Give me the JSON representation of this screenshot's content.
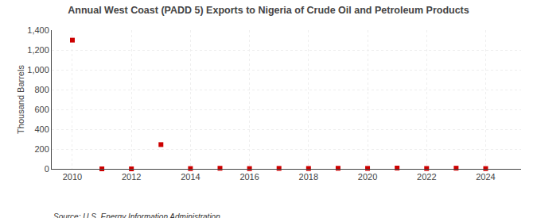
{
  "chart_data": {
    "type": "scatter",
    "title": "Annual West Coast (PADD 5) Exports to Nigeria of Crude Oil and Petroleum Products",
    "ylabel": "Thousand Barrels",
    "annotations": [
      "Source: U.S. Energy Information Administration"
    ],
    "x": [
      2010,
      2011,
      2012,
      2013,
      2014,
      2015,
      2016,
      2017,
      2018,
      2019,
      2020,
      2021,
      2022,
      2023,
      2024
    ],
    "values": [
      1299,
      0,
      0,
      245,
      3,
      6,
      3,
      5,
      4,
      6,
      5,
      8,
      4,
      7,
      3
    ],
    "color": "#cc0000",
    "marker": "square",
    "xlim": [
      2009.3,
      2025.2
    ],
    "xticks": [
      2010,
      2012,
      2014,
      2016,
      2018,
      2020,
      2022,
      2024
    ],
    "ylim": [
      0,
      1400
    ],
    "yticks": [
      0,
      200,
      400,
      600,
      800,
      {
        "value": 1000,
        "label": "1,000"
      },
      {
        "value": 1200,
        "label": "1,200"
      },
      {
        "value": 1400,
        "label": "1,400"
      }
    ],
    "grid": true
  }
}
